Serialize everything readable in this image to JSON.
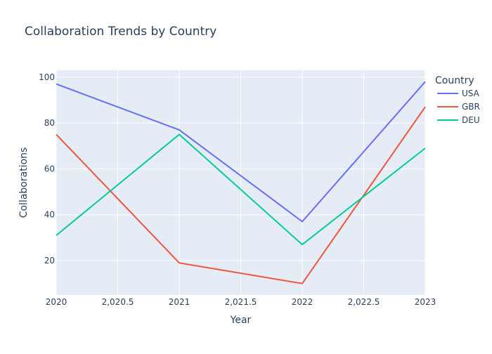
{
  "chart_data": {
    "type": "line",
    "title": "Collaboration Trends by Country",
    "xlabel": "Year",
    "ylabel": "Collaborations",
    "x": [
      2020,
      2021,
      2022,
      2023
    ],
    "xlim": [
      2020,
      2023
    ],
    "ylim": [
      5,
      103
    ],
    "x_ticks": [
      2020,
      2020.5,
      2021,
      2021.5,
      2022,
      2022.5,
      2023
    ],
    "x_tick_labels": [
      "2020",
      "2,020.5",
      "2021",
      "2,021.5",
      "2022",
      "2,022.5",
      "2023"
    ],
    "y_ticks": [
      20,
      40,
      60,
      80,
      100
    ],
    "y_tick_labels": [
      "20",
      "40",
      "60",
      "80",
      "100"
    ],
    "grid": true,
    "legend_title": "Country",
    "legend_position": "top-right",
    "series": [
      {
        "name": "USA",
        "color": "#636efa",
        "values": [
          97,
          77,
          37,
          98
        ]
      },
      {
        "name": "GBR",
        "color": "#ef553b",
        "values": [
          75,
          19,
          10,
          87
        ]
      },
      {
        "name": "DEU",
        "color": "#00cc96",
        "values": [
          31,
          75,
          27,
          69
        ]
      }
    ],
    "plot_background": "#e5ecf6"
  }
}
